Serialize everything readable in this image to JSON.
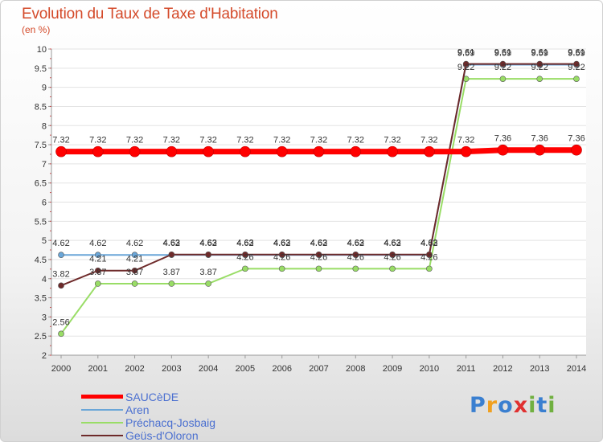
{
  "header": {
    "title": "Evolution du Taux de Taxe d'Habitation",
    "unit": "(en %)"
  },
  "chart_data": {
    "type": "line",
    "title": "Evolution du Taux de Taxe d'Habitation",
    "ylabel": "(en %)",
    "xlabel": "",
    "x": [
      "2000",
      "2001",
      "2002",
      "2003",
      "2004",
      "2005",
      "2006",
      "2007",
      "2008",
      "2009",
      "2010",
      "2011",
      "2012",
      "2013",
      "2014"
    ],
    "ylim": [
      2,
      10
    ],
    "yticks": [
      "2",
      "2.5",
      "3",
      "3.5",
      "4",
      "4.5",
      "5",
      "5.5",
      "6",
      "6.5",
      "7",
      "7.5",
      "8",
      "8.5",
      "9",
      "9.5",
      "10"
    ],
    "grid": true,
    "legend_position": "bottom-left",
    "series": [
      {
        "name": "SAUCèDE",
        "color": "#ff0000",
        "values": [
          7.32,
          7.32,
          7.32,
          7.32,
          7.32,
          7.32,
          7.32,
          7.32,
          7.32,
          7.32,
          7.32,
          7.32,
          7.36,
          7.36,
          7.36
        ],
        "labels": [
          "7.32",
          "7.32",
          "7.32",
          "7.32",
          "7.32",
          "7.32",
          "7.32",
          "7.32",
          "7.32",
          "7.32",
          "7.32",
          "7.32",
          "7.36",
          "7.36",
          "7.36"
        ]
      },
      {
        "name": "Aren",
        "color": "#6aa6d8",
        "values": [
          4.62,
          4.62,
          4.62,
          4.62,
          4.62,
          4.62,
          4.62,
          4.62,
          4.62,
          4.62,
          4.62,
          9.59,
          9.59,
          9.59,
          9.59
        ],
        "labels": [
          "4.62",
          "4.62",
          "4.62",
          "4.62",
          "4.62",
          "4.62",
          "4.62",
          "4.62",
          "4.62",
          "4.62",
          "4.62",
          "9.59",
          "9.59",
          "9.59",
          "9.59"
        ]
      },
      {
        "name": "Préchacq-Josbaig",
        "color": "#99dd66",
        "values": [
          2.56,
          3.87,
          3.87,
          3.87,
          3.87,
          4.26,
          4.26,
          4.26,
          4.26,
          4.26,
          4.26,
          9.22,
          9.22,
          9.22,
          9.22
        ],
        "labels": [
          "2.56",
          "3.87",
          "3.87",
          "3.87",
          "3.87",
          "4.26",
          "4.26",
          "4.26",
          "4.26",
          "4.26",
          "4.26",
          "9.22",
          "9.22",
          "9.22",
          "9.22"
        ]
      },
      {
        "name": "Geüs-d'Oloron",
        "color": "#6e2a2a",
        "values": [
          3.82,
          4.21,
          4.21,
          4.63,
          4.63,
          4.63,
          4.63,
          4.63,
          4.63,
          4.63,
          4.63,
          9.61,
          9.61,
          9.61,
          9.61
        ],
        "labels": [
          "3.82",
          "4.21",
          "4.21",
          "4.63",
          "4.63",
          "4.63",
          "4.63",
          "4.63",
          "4.63",
          "4.63",
          "4.63",
          "9.61",
          "9.61",
          "9.61",
          "9.61"
        ]
      }
    ]
  },
  "legend": {
    "items": [
      {
        "label": "SAUCèDE",
        "color": "#ff0000"
      },
      {
        "label": "Aren",
        "color": "#6aa6d8"
      },
      {
        "label": "Préchacq-Josbaig",
        "color": "#99dd66"
      },
      {
        "label": "Geüs-d'Oloron",
        "color": "#6e2a2a"
      }
    ]
  },
  "logo": {
    "letters": [
      "P",
      "r",
      "o",
      "x",
      "i",
      "t",
      "i"
    ],
    "colors": [
      "#3a7fd0",
      "#f0a020",
      "#3a7fd0",
      "#e03030",
      "#70b040",
      "#3a7fd0",
      "#70b040"
    ]
  }
}
